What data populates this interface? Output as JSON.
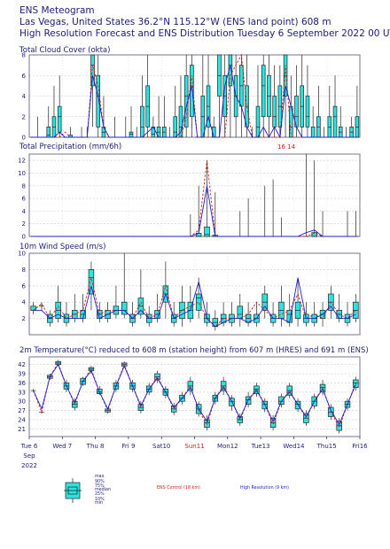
{
  "header": {
    "line1": "ENS Meteogram",
    "line2": "Las Vegas, United States 36.2°N 115.12°W (ENS land point) 608 m",
    "line3": "High Resolution Forecast and ENS Distribution Tuesday  6 September 2022 00 UTC"
  },
  "xaxis": {
    "labels": [
      "Tue 6",
      "Wed 7",
      "Thu 8",
      "Fri 9",
      "Sat10",
      "Sun11",
      "Mon12",
      "Tue13",
      "Wed14",
      "Thu15",
      "Fri16"
    ],
    "highlight": "Sun11",
    "sub1": "Sep",
    "sub2": "2022",
    "days": 10
  },
  "colors": {
    "box": "#2de3de",
    "control": "#d0201a",
    "hres": "#2020d0",
    "text": "#1c1c7a"
  },
  "legend": {
    "labels": [
      "max",
      "90%",
      "75%",
      "median",
      "25%",
      "10%",
      "min"
    ],
    "control": "ENS Control (18 km)",
    "hres": "High Resolution (9 km)"
  },
  "chart_data": [
    {
      "type": "box",
      "title": "Total Cloud Cover (okta)",
      "yticks": [
        0,
        2,
        4,
        6,
        8
      ],
      "ylim": [
        0,
        8
      ],
      "n": 60,
      "median": [
        0,
        0,
        0,
        0.2,
        1,
        2,
        0,
        0,
        0,
        0,
        0,
        7,
        4,
        0.5,
        0,
        0,
        0,
        0,
        0.3,
        0,
        1,
        3,
        0.3,
        0.5,
        0.5,
        0,
        0.5,
        1,
        4,
        5,
        0,
        2,
        3,
        0,
        6,
        4,
        7,
        4,
        5,
        3,
        0,
        1,
        5,
        4,
        2,
        3,
        6,
        1,
        2,
        3,
        2,
        0,
        1,
        0,
        1,
        2,
        0.5,
        0,
        0.5,
        1
      ],
      "q25": [
        0,
        0,
        0,
        0,
        0,
        0.5,
        0,
        0,
        0,
        0,
        0,
        5,
        1,
        0,
        0,
        0,
        0,
        0,
        0,
        0,
        0,
        1,
        0,
        0,
        0,
        0,
        0,
        0,
        1,
        2,
        0,
        0,
        1,
        0,
        4,
        2,
        5,
        2,
        3,
        1,
        0,
        0,
        2,
        2,
        1,
        1,
        4,
        0,
        1,
        1,
        1,
        0,
        0,
        0,
        0,
        0,
        0,
        0,
        0,
        0
      ],
      "q75": [
        0,
        0,
        0,
        1,
        2,
        3,
        0,
        0.2,
        0,
        0,
        0,
        8,
        6,
        1,
        0,
        0,
        0,
        0,
        0.5,
        0,
        3,
        5,
        1,
        1,
        1,
        0,
        2,
        3,
        6,
        7,
        0,
        4,
        5,
        1,
        8,
        6,
        8,
        6,
        7,
        5,
        0,
        3,
        7,
        6,
        4,
        5,
        8,
        3,
        4,
        5,
        4,
        1,
        2,
        0,
        2,
        3,
        1,
        0,
        1,
        2
      ],
      "min": [
        0,
        0,
        0,
        0,
        0,
        0,
        0,
        0,
        0,
        0,
        0,
        1,
        0,
        0,
        0,
        0,
        0,
        0,
        0,
        0,
        0,
        0,
        0,
        0,
        0,
        0,
        0,
        0,
        0,
        0,
        0,
        0,
        0,
        0,
        0,
        0,
        0,
        0,
        0,
        0,
        0,
        0,
        0,
        0,
        0,
        0,
        0,
        0,
        0,
        0,
        0,
        0,
        0,
        0,
        0,
        0,
        0,
        0,
        0,
        0
      ],
      "max": [
        0,
        2,
        0,
        3,
        5,
        6,
        0,
        1,
        0,
        1,
        1,
        8,
        8,
        4,
        0,
        2,
        0,
        2,
        3,
        1,
        6,
        8,
        2,
        4,
        4,
        1,
        5,
        6,
        8,
        8,
        0,
        8,
        8,
        2,
        8,
        8,
        8,
        8,
        8,
        8,
        1,
        7,
        8,
        8,
        7,
        7,
        8,
        6,
        7,
        8,
        7,
        3,
        5,
        1,
        5,
        6,
        3,
        1,
        2,
        5
      ],
      "control": [
        0,
        0,
        0,
        0,
        0,
        0,
        0.5,
        0,
        0,
        0,
        0,
        7,
        5,
        1,
        0,
        0,
        0,
        0,
        0,
        0,
        0,
        0,
        0,
        0,
        0,
        0,
        0,
        0,
        2,
        6,
        0,
        0,
        0,
        0,
        0,
        0,
        6,
        7,
        8,
        3,
        0,
        0,
        0,
        0,
        0,
        0,
        7,
        0,
        0,
        0,
        0,
        0,
        0,
        0,
        0,
        0,
        0,
        0,
        0,
        0
      ],
      "hres": [
        0,
        0,
        0,
        0,
        0,
        0.5,
        0,
        0,
        0,
        0,
        0,
        6,
        4,
        1,
        0,
        0,
        0,
        0,
        0,
        0,
        0,
        0.5,
        1,
        0,
        0,
        0,
        0,
        0.5,
        3,
        5,
        0,
        0,
        2,
        0,
        0,
        5,
        7,
        4,
        3,
        1,
        0,
        0,
        1,
        0,
        1,
        0,
        5,
        3,
        1,
        0,
        0,
        0,
        0,
        0,
        0,
        0,
        0,
        0,
        0,
        0
      ]
    },
    {
      "type": "box",
      "title": "Total Precipitation (mm/6h)",
      "yticks": [
        0,
        2,
        4,
        6,
        8,
        10,
        12
      ],
      "ylim": [
        0,
        13
      ],
      "n": 40,
      "median": [
        0,
        0,
        0,
        0,
        0,
        0,
        0,
        0,
        0,
        0,
        0,
        0,
        0,
        0,
        0,
        0,
        0,
        0,
        0,
        0,
        0,
        0.3,
        0,
        0,
        0,
        0,
        0,
        0,
        0,
        0,
        0,
        0,
        0,
        0,
        0,
        0,
        0,
        0,
        0,
        0
      ],
      "q25": [
        0,
        0,
        0,
        0,
        0,
        0,
        0,
        0,
        0,
        0,
        0,
        0,
        0,
        0,
        0,
        0,
        0,
        0,
        0,
        0,
        0,
        0,
        0,
        0,
        0,
        0,
        0,
        0,
        0,
        0,
        0,
        0,
        0,
        0,
        0,
        0,
        0,
        0,
        0,
        0
      ],
      "q75": [
        0,
        0,
        0,
        0,
        0,
        0,
        0,
        0,
        0,
        0,
        0,
        0,
        0,
        0,
        0,
        0,
        0,
        0,
        0,
        0,
        0.5,
        1.5,
        0.2,
        0,
        0,
        0,
        0,
        0,
        0,
        0,
        0,
        0,
        0,
        0,
        0.6,
        0,
        0,
        0,
        0,
        0
      ],
      "min": [
        0,
        0,
        0,
        0,
        0,
        0,
        0,
        0,
        0,
        0,
        0,
        0,
        0,
        0,
        0,
        0,
        0,
        0,
        0,
        0,
        0,
        0,
        0,
        0,
        0,
        0,
        0,
        0,
        0,
        0,
        0,
        0,
        0,
        0,
        0,
        0,
        0,
        0,
        0,
        0
      ],
      "max": [
        0,
        0,
        0,
        0,
        0,
        0,
        0,
        0,
        0,
        0,
        0,
        0,
        0,
        0,
        0,
        0,
        0,
        0,
        0,
        3.5,
        8,
        12,
        7,
        0,
        0,
        4,
        6,
        0,
        8,
        9,
        3,
        0,
        0,
        13,
        12,
        4,
        0,
        0,
        4,
        4
      ],
      "control": [
        0,
        0,
        0,
        0,
        0,
        0,
        0,
        0,
        0,
        0,
        0,
        0,
        0,
        0,
        0,
        0,
        0,
        0,
        0,
        0,
        1,
        12,
        0,
        0,
        0,
        0,
        0,
        0,
        0,
        0,
        0,
        0,
        0,
        0,
        0.5,
        0,
        0,
        0,
        0,
        0
      ],
      "hres": [
        0,
        0,
        0,
        0,
        0,
        0,
        0,
        0,
        0,
        0,
        0,
        0,
        0,
        0,
        0,
        0,
        0,
        0,
        0,
        0,
        0.5,
        8,
        0,
        0,
        0,
        0,
        0,
        0,
        0,
        0,
        0,
        0,
        0,
        0.6,
        1,
        0,
        0,
        0,
        0,
        0
      ],
      "annotations": [
        "16",
        "14"
      ]
    },
    {
      "type": "box",
      "title": "10m Wind Speed (m/s)",
      "yticks": [
        2,
        4,
        6,
        8,
        10
      ],
      "ylim": [
        0,
        10
      ],
      "n": 40,
      "median": [
        3,
        3.5,
        2,
        3,
        2,
        2.5,
        2.5,
        7,
        2.5,
        2.5,
        3,
        3,
        2,
        3.5,
        2,
        2.5,
        5,
        2,
        3,
        3,
        4.5,
        2,
        1.5,
        2,
        2,
        2.5,
        2,
        2,
        4,
        2,
        3,
        2.5,
        3,
        2,
        2,
        2.5,
        4,
        2.5,
        2,
        3
      ],
      "q25": [
        3,
        3.5,
        1.5,
        2,
        1.5,
        2,
        2,
        5,
        2,
        2,
        2.5,
        2.5,
        1.5,
        2.5,
        1.5,
        2,
        4,
        1.5,
        2,
        2,
        3,
        1.5,
        1,
        1.5,
        1.5,
        2,
        1.5,
        1.5,
        3,
        1.5,
        2,
        1.5,
        2,
        1.5,
        1.5,
        2,
        3,
        2,
        1.5,
        2
      ],
      "q75": [
        3.5,
        3.5,
        2.5,
        4,
        2.5,
        3,
        3,
        8,
        3,
        3,
        3.5,
        4,
        2.5,
        4.5,
        2.5,
        3,
        6,
        2.5,
        4,
        4,
        5,
        2.5,
        2,
        2.5,
        2.5,
        3.5,
        2.5,
        2.5,
        5,
        2.5,
        4,
        3,
        4,
        2.5,
        2.5,
        3,
        5,
        3,
        2.5,
        4
      ],
      "min": [
        2.5,
        3,
        1,
        1.5,
        1,
        1.5,
        1.5,
        3,
        1.5,
        1.5,
        2,
        2,
        1,
        2,
        1,
        1.5,
        2,
        1,
        1,
        1.5,
        2,
        1,
        0.5,
        1,
        1,
        1,
        1,
        1,
        2,
        1,
        1,
        1,
        1,
        1,
        1,
        1,
        2,
        1.5,
        1,
        1.5
      ],
      "max": [
        4,
        4,
        3,
        6,
        4,
        5,
        5,
        9,
        4,
        4,
        6,
        10,
        4,
        8,
        3.5,
        5,
        9,
        4,
        6,
        6,
        7,
        4,
        3,
        4,
        4,
        5,
        4,
        4,
        6,
        4,
        6,
        5,
        7,
        4,
        4,
        4,
        6,
        5,
        4,
        5
      ],
      "control": [
        3,
        3.8,
        2,
        3.5,
        2,
        2.5,
        3,
        7,
        2.5,
        3,
        3,
        3,
        2,
        4,
        2,
        2.5,
        6,
        2,
        3,
        3.5,
        4,
        2,
        1,
        2,
        2,
        2,
        2.5,
        4,
        3,
        2,
        2.5,
        3,
        5,
        2,
        2.5,
        2,
        4,
        2.5,
        2,
        3
      ],
      "hres": [
        3,
        3,
        2,
        2.5,
        2,
        2,
        2,
        6,
        2,
        2.5,
        3,
        3,
        2,
        3,
        2,
        2,
        5,
        2,
        2.5,
        3,
        6.5,
        2,
        1,
        1.5,
        2,
        2,
        1.5,
        2,
        3.5,
        2,
        2,
        1.5,
        7,
        2,
        2,
        2.5,
        3.5,
        2,
        2,
        2.5
      ]
    },
    {
      "type": "box",
      "title": "2m Temperature(°C) reduced to 608 m (station height) from 607 m (HRES) and 691 m (ENS)",
      "yticks": [
        21,
        24,
        27,
        30,
        33,
        36,
        39,
        42
      ],
      "ylim": [
        18.5,
        44.5
      ],
      "n": 40,
      "median": [
        33.5,
        26.5,
        38,
        42.5,
        35,
        29,
        36.5,
        40.5,
        33,
        27,
        35,
        42,
        35,
        28,
        34,
        38,
        33,
        27.5,
        31,
        35,
        27.5,
        23,
        31,
        35,
        30,
        24,
        30.5,
        34,
        29,
        23,
        30,
        33.5,
        29,
        24.5,
        30,
        34.5,
        26.5,
        22,
        29,
        36
      ],
      "q25": [
        33.5,
        26.5,
        37.5,
        42,
        34,
        28,
        35.5,
        40,
        32.5,
        26.5,
        34,
        41.5,
        34,
        27,
        33,
        37,
        32,
        26.5,
        30,
        33.5,
        26,
        21.5,
        30,
        33.5,
        28.5,
        23,
        29,
        32.5,
        27.5,
        21.5,
        29,
        32,
        27.5,
        23,
        28.5,
        33,
        25,
        20.5,
        28,
        34.5
      ],
      "q75": [
        33.5,
        26.5,
        38.5,
        43,
        36,
        30,
        37.5,
        41,
        34,
        27.5,
        36,
        42.5,
        36,
        29,
        35,
        39,
        34,
        28.5,
        32,
        36.5,
        29,
        24,
        32,
        36.5,
        31,
        25,
        31.5,
        35,
        30,
        24.5,
        31.5,
        35,
        30,
        26,
        31.5,
        35.5,
        28,
        23.5,
        30,
        37
      ],
      "min": [
        33,
        26,
        37,
        41.5,
        33,
        27,
        35,
        39,
        32,
        26,
        33,
        41,
        33,
        26,
        32,
        36,
        31,
        25.5,
        29,
        32,
        25,
        20.5,
        29,
        32,
        27,
        22,
        28,
        31.5,
        26.5,
        20.5,
        28,
        31,
        26.5,
        22,
        27.5,
        32,
        24,
        19.5,
        27,
        33.5
      ],
      "max": [
        34,
        27,
        39,
        43.5,
        37,
        31,
        38,
        41.5,
        35,
        28,
        37,
        43,
        37,
        30,
        36,
        40,
        35,
        29.5,
        33,
        38,
        30,
        25.5,
        33,
        38,
        32,
        26,
        33,
        36,
        31,
        25.5,
        32.5,
        36,
        31,
        27,
        32.5,
        37,
        29,
        24.5,
        31,
        38
      ],
      "control": [
        33.5,
        26.5,
        38,
        42.5,
        35,
        29,
        36.5,
        40.5,
        33,
        27,
        35,
        42,
        35,
        28,
        34,
        38,
        33,
        27.5,
        31,
        35,
        27,
        22.5,
        31,
        35,
        30,
        24,
        30.5,
        34,
        29,
        22.5,
        30,
        33.5,
        29,
        24.5,
        30,
        34.5,
        26.5,
        21.5,
        29,
        36
      ],
      "hres": [
        33.5,
        27.5,
        38,
        42,
        35,
        29.5,
        36.5,
        40,
        33,
        27.5,
        35,
        41.5,
        35,
        28.5,
        34,
        37.5,
        33,
        28,
        31,
        34.5,
        27.5,
        23.5,
        31,
        34.5,
        30,
        24.5,
        30.5,
        33.5,
        29,
        23.5,
        30,
        33,
        29,
        25,
        30,
        34,
        27,
        22.5,
        29,
        35.5
      ]
    }
  ]
}
